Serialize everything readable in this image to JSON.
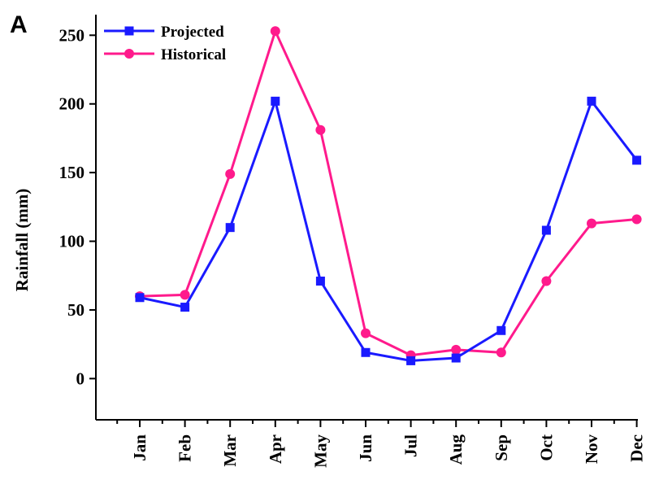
{
  "panel_label": "A",
  "chart_data": {
    "type": "line",
    "categories": [
      "Jan",
      "Feb",
      "Mar",
      "Apr",
      "May",
      "Jun",
      "Jul",
      "Aug",
      "Sep",
      "Oct",
      "Nov",
      "Dec"
    ],
    "series": [
      {
        "name": "Projected",
        "color": "#1a1aff",
        "marker": "square",
        "values": [
          59,
          52,
          110,
          202,
          71,
          19,
          13,
          15,
          35,
          108,
          202,
          159
        ]
      },
      {
        "name": "Historical",
        "color": "#ff1a8c",
        "marker": "circle",
        "values": [
          60,
          61,
          149,
          253,
          181,
          33,
          17,
          21,
          19,
          71,
          113,
          116
        ]
      }
    ],
    "title": "",
    "xlabel": "",
    "ylabel": "Rainfall (mm)",
    "ylim": [
      -30,
      265
    ],
    "yticks": [
      0,
      50,
      100,
      150,
      200,
      250
    ],
    "grid": false,
    "legend_position": "top-left"
  }
}
